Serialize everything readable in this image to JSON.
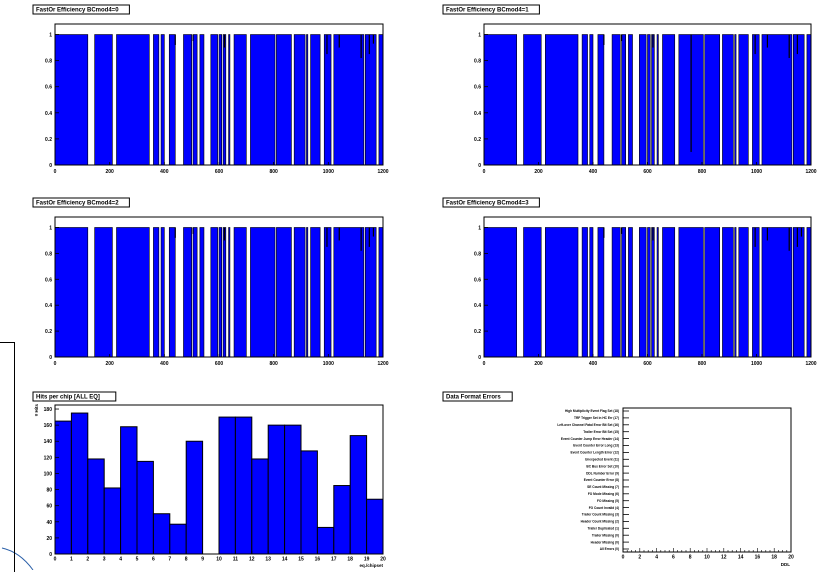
{
  "colors": {
    "fill": "#0000ff",
    "line": "#000000",
    "accent": "#2a5fa8"
  },
  "chart_data": [
    {
      "type": "area",
      "title": "FastOr Efficiency BCmod4=0",
      "xlim": [
        0,
        1200
      ],
      "ylim": [
        0,
        1.05
      ],
      "x_ticks": [
        "0",
        "200",
        "400",
        "600",
        "800",
        "1000",
        "1200"
      ],
      "y_ticks": [
        "0",
        "0.2",
        "0.4",
        "0.6",
        "0.8",
        "1"
      ],
      "segments": [
        [
          0,
          120
        ],
        [
          145,
          210
        ],
        [
          225,
          345
        ],
        [
          360,
          380
        ],
        [
          388,
          400
        ],
        [
          418,
          440
        ],
        [
          470,
          500
        ],
        [
          505,
          520
        ],
        [
          530,
          545
        ],
        [
          570,
          595
        ],
        [
          600,
          610
        ],
        [
          615,
          625
        ],
        [
          635,
          640
        ],
        [
          655,
          700
        ],
        [
          715,
          805
        ],
        [
          810,
          865
        ],
        [
          875,
          915
        ],
        [
          920,
          925
        ],
        [
          935,
          970
        ],
        [
          985,
          1010
        ],
        [
          1020,
          1130
        ],
        [
          1135,
          1175
        ],
        [
          1185,
          1200
        ]
      ],
      "dips": [
        [
          440,
          0.92
        ],
        [
          505,
          0.95
        ],
        [
          620,
          0.9
        ],
        [
          995,
          0.85
        ],
        [
          1040,
          0.9
        ],
        [
          1120,
          0.82
        ],
        [
          1150,
          0.85
        ],
        [
          1165,
          0.93
        ]
      ]
    },
    {
      "type": "area",
      "title": "FastOr Efficiency BCmod4=1",
      "xlim": [
        0,
        1200
      ],
      "ylim": [
        0,
        1.05
      ],
      "x_ticks": [
        "0",
        "200",
        "400",
        "600",
        "800",
        "1000",
        "1200"
      ],
      "y_ticks": [
        "0",
        "0.2",
        "0.4",
        "0.6",
        "0.8",
        "1"
      ],
      "segments": [
        [
          0,
          120
        ],
        [
          145,
          210
        ],
        [
          225,
          345
        ],
        [
          360,
          380
        ],
        [
          388,
          400
        ],
        [
          418,
          440
        ],
        [
          470,
          500
        ],
        [
          505,
          520
        ],
        [
          530,
          545
        ],
        [
          570,
          595
        ],
        [
          600,
          610
        ],
        [
          615,
          625
        ],
        [
          635,
          640
        ],
        [
          655,
          700
        ],
        [
          715,
          805
        ],
        [
          810,
          865
        ],
        [
          875,
          915
        ],
        [
          920,
          925
        ],
        [
          935,
          970
        ],
        [
          985,
          1010
        ],
        [
          1020,
          1130
        ],
        [
          1135,
          1175
        ],
        [
          1185,
          1200
        ]
      ],
      "dips": [
        [
          440,
          0.92
        ],
        [
          505,
          0.95
        ],
        [
          620,
          0.9
        ],
        [
          760,
          0.1
        ],
        [
          995,
          0.85
        ],
        [
          1040,
          0.9
        ],
        [
          1120,
          0.82
        ],
        [
          1150,
          0.85
        ]
      ]
    },
    {
      "type": "area",
      "title": "FastOr Efficiency BCmod4=2",
      "xlim": [
        0,
        1200
      ],
      "ylim": [
        0,
        1.05
      ],
      "x_ticks": [
        "0",
        "200",
        "400",
        "600",
        "800",
        "1000",
        "1200"
      ],
      "y_ticks": [
        "0",
        "0.2",
        "0.4",
        "0.6",
        "0.8",
        "1"
      ],
      "segments": [
        [
          0,
          120
        ],
        [
          145,
          210
        ],
        [
          225,
          345
        ],
        [
          360,
          380
        ],
        [
          388,
          400
        ],
        [
          418,
          440
        ],
        [
          470,
          500
        ],
        [
          505,
          520
        ],
        [
          530,
          545
        ],
        [
          570,
          595
        ],
        [
          600,
          610
        ],
        [
          615,
          625
        ],
        [
          635,
          640
        ],
        [
          655,
          700
        ],
        [
          715,
          805
        ],
        [
          810,
          865
        ],
        [
          875,
          915
        ],
        [
          920,
          925
        ],
        [
          935,
          970
        ],
        [
          985,
          1010
        ],
        [
          1020,
          1130
        ],
        [
          1135,
          1175
        ],
        [
          1185,
          1200
        ]
      ],
      "dips": [
        [
          440,
          0.92
        ],
        [
          505,
          0.95
        ],
        [
          620,
          0.9
        ],
        [
          995,
          0.85
        ],
        [
          1040,
          0.9
        ],
        [
          1120,
          0.82
        ],
        [
          1150,
          0.85
        ],
        [
          1165,
          0.93
        ]
      ]
    },
    {
      "type": "area",
      "title": "FastOr Efficiency BCmod4=3",
      "xlim": [
        0,
        1200
      ],
      "ylim": [
        0,
        1.05
      ],
      "x_ticks": [
        "0",
        "200",
        "400",
        "600",
        "800",
        "1000",
        "1200"
      ],
      "y_ticks": [
        "0",
        "0.2",
        "0.4",
        "0.6",
        "0.8",
        "1"
      ],
      "segments": [
        [
          0,
          120
        ],
        [
          145,
          210
        ],
        [
          225,
          345
        ],
        [
          360,
          380
        ],
        [
          388,
          400
        ],
        [
          418,
          440
        ],
        [
          470,
          500
        ],
        [
          505,
          520
        ],
        [
          530,
          545
        ],
        [
          570,
          595
        ],
        [
          600,
          610
        ],
        [
          615,
          625
        ],
        [
          635,
          640
        ],
        [
          655,
          700
        ],
        [
          715,
          805
        ],
        [
          810,
          865
        ],
        [
          875,
          915
        ],
        [
          920,
          925
        ],
        [
          935,
          970
        ],
        [
          985,
          1010
        ],
        [
          1020,
          1130
        ],
        [
          1135,
          1175
        ],
        [
          1185,
          1200
        ]
      ],
      "dips": [
        [
          440,
          0.92
        ],
        [
          505,
          0.95
        ],
        [
          620,
          0.9
        ],
        [
          995,
          0.85
        ],
        [
          1040,
          0.9
        ],
        [
          1120,
          0.82
        ],
        [
          1150,
          0.85
        ],
        [
          1165,
          0.93
        ]
      ]
    },
    {
      "type": "bar",
      "title": "Hits per chip [ALL EQ]",
      "ylabel": "# Hits",
      "xlabel": "eq./chipset",
      "xlim": [
        0,
        20
      ],
      "ylim": [
        0,
        185
      ],
      "x_ticks": [
        "0",
        "1",
        "2",
        "3",
        "4",
        "5",
        "6",
        "7",
        "8",
        "9",
        "10",
        "11",
        "12",
        "13",
        "14",
        "15",
        "16",
        "17",
        "18",
        "19",
        "20"
      ],
      "y_ticks": [
        "0",
        "20",
        "40",
        "60",
        "80",
        "100",
        "120",
        "140",
        "160",
        "180"
      ],
      "values": [
        165,
        175,
        118,
        82,
        158,
        115,
        50,
        37,
        140,
        0,
        170,
        170,
        118,
        160,
        160,
        128,
        33,
        85,
        147,
        68
      ]
    },
    {
      "type": "bar",
      "title": "Data Format Errors",
      "xlabel": "DDL",
      "xlim": [
        0,
        20
      ],
      "x_ticks": [
        "0",
        "2",
        "4",
        "6",
        "8",
        "10",
        "12",
        "14",
        "16",
        "18",
        "20"
      ],
      "categories": [
        "High Multiplicity Event Flag Set (18)",
        "TRF Trigger Set in HC Err (17)",
        "Left-over Channel Fatal Error Bit Set (16)",
        "Trailer Error Bit Set (15)",
        "Event Counter Jump Error Header (14)",
        "Event Counter Error Long (13)",
        "Event Counter Length Error (12)",
        "Unexpected Event (11)",
        "BC Bus Error Set (10)",
        "DDL Number Error (9)",
        "Event Counter Error (8)",
        "SE Count Missing (7)",
        "FO Mode Missing (6)",
        "FO Missing (5)",
        "FO Count Invalid (4)",
        "Trailer Count Missing (3)",
        "Header Count Missing (2)",
        "Trailer Duplicated (1)",
        "Trailer Missing (0)",
        "Header Missing (0)",
        "All Errors (0)"
      ],
      "values": [
        0,
        0,
        0,
        0,
        0,
        0,
        0,
        0,
        0,
        0,
        0,
        0,
        0,
        0,
        0,
        0,
        0,
        0,
        0,
        0,
        0
      ]
    }
  ]
}
